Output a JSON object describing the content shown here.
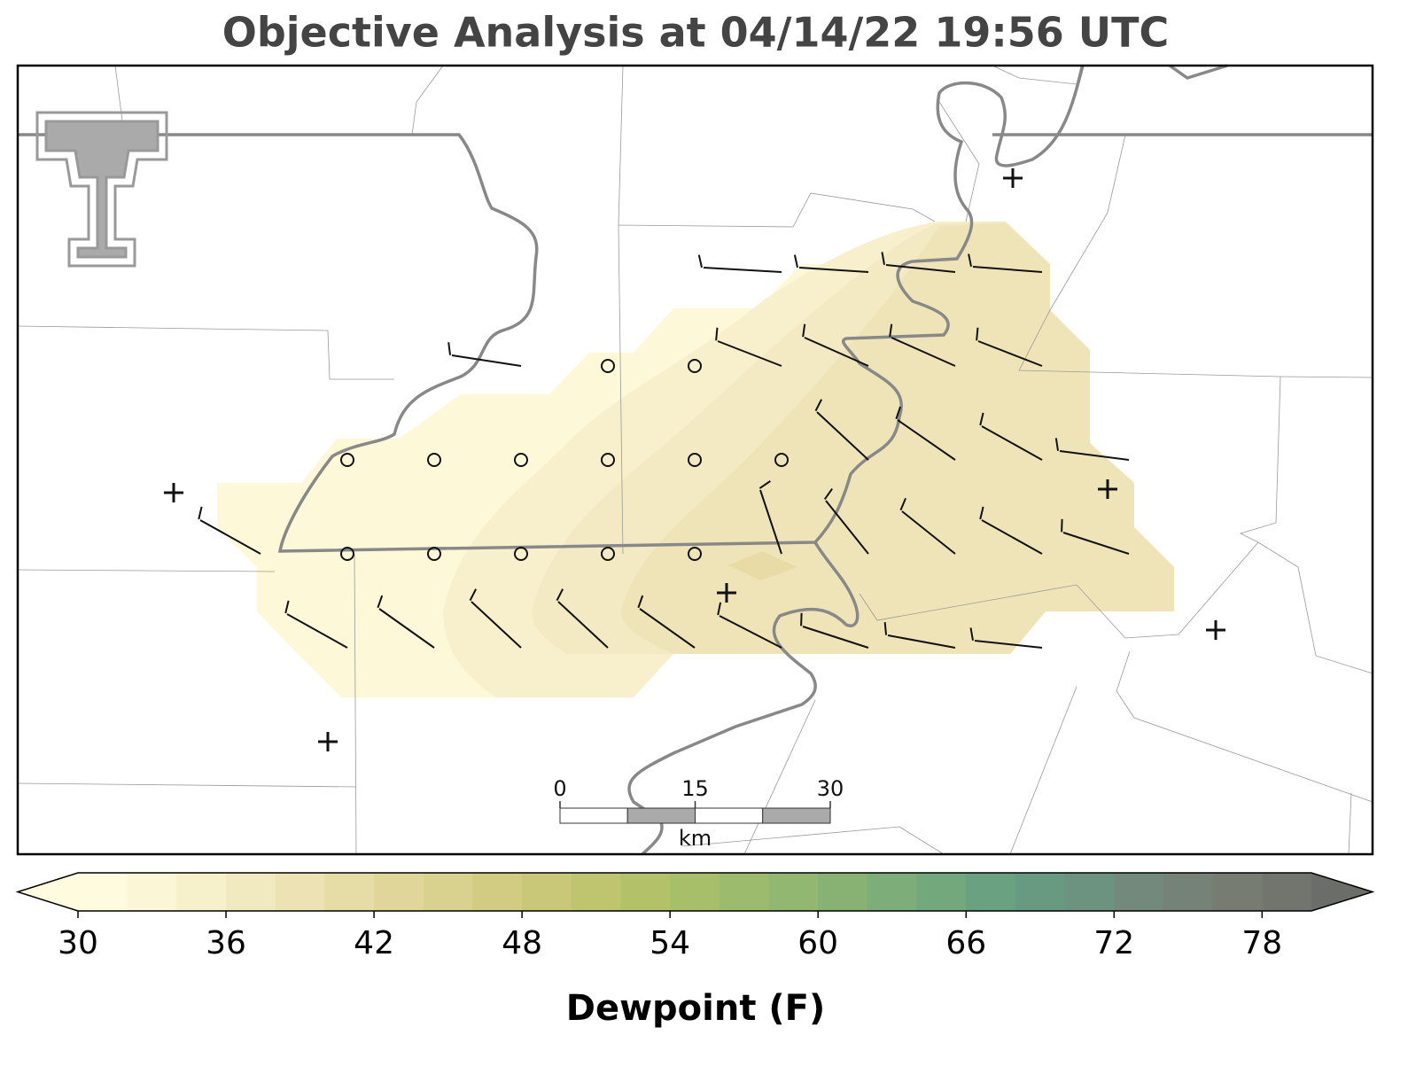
{
  "title": "Objective Analysis at 04/14/22 19:56 UTC",
  "scale_bar": {
    "ticks": [
      0,
      15,
      30
    ],
    "unit": "km"
  },
  "colorbar": {
    "label": "Dewpoint (F)",
    "lim": [
      30,
      80
    ],
    "ticks": [
      30,
      36,
      42,
      48,
      54,
      60,
      66,
      72,
      78
    ],
    "extend": "both",
    "colors": [
      "#fffbdf",
      "#fbf6d6",
      "#f6f0cb",
      "#f1e9c0",
      "#ece2b4",
      "#e6dca6",
      "#e0d69a",
      "#d9d18e",
      "#d1cc82",
      "#c8c878",
      "#bec56e",
      "#b3c269",
      "#a8bf69",
      "#9dbb6c",
      "#92b770",
      "#87b274",
      "#7dad79",
      "#73a87d",
      "#6aa181",
      "#689a82",
      "#6c9280",
      "#72897b",
      "#758277",
      "#767c72",
      "#72756e"
    ],
    "under_color": "#fffbdf",
    "over_color": "#6b6e68"
  }
}
